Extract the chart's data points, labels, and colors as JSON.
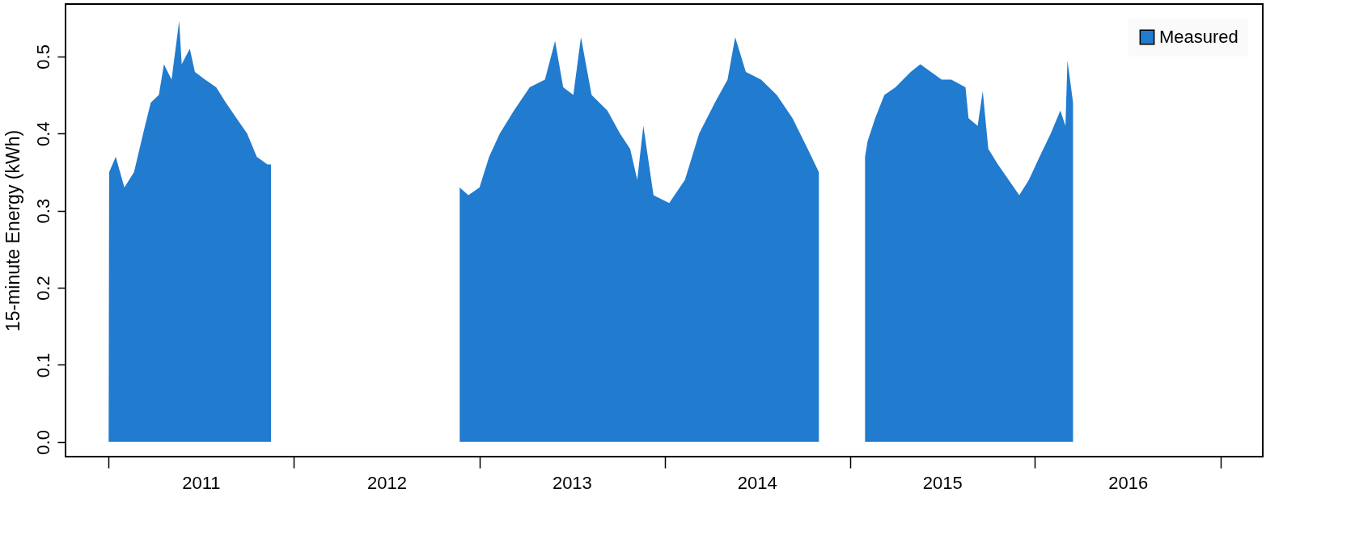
{
  "chart_data": {
    "type": "area",
    "ylabel": "15-minute Energy (kWh)",
    "xlim": [
      "2010-10-08",
      "2017-03-25"
    ],
    "xticks": [
      {
        "value": "2011-01-01",
        "label": null
      },
      {
        "value": "2012-01-01",
        "label": null
      },
      {
        "value": "2013-01-01",
        "label": null
      },
      {
        "value": "2014-01-01",
        "label": null
      },
      {
        "value": "2015-01-01",
        "label": null
      },
      {
        "value": "2016-01-01",
        "label": null
      },
      {
        "value": "2017-01-01",
        "label": null
      },
      {
        "value": "2011-07-02",
        "label": "2011"
      },
      {
        "value": "2012-07-02",
        "label": "2012"
      },
      {
        "value": "2013-07-02",
        "label": "2013"
      },
      {
        "value": "2014-07-02",
        "label": "2014"
      },
      {
        "value": "2015-07-02",
        "label": "2015"
      },
      {
        "value": "2016-07-02",
        "label": "2016"
      }
    ],
    "ylim": [
      -0.019,
      0.568
    ],
    "yticks": [
      {
        "value": 0,
        "label": "0.0"
      },
      {
        "value": 0.1,
        "label": "0.1"
      },
      {
        "value": 0.2,
        "label": "0.2"
      },
      {
        "value": 0.3,
        "label": "0.3"
      },
      {
        "value": 0.4,
        "label": "0.4"
      },
      {
        "value": 0.5,
        "label": "0.5"
      }
    ],
    "grid": false,
    "legend": "top right",
    "x": [
      "2011-01-01",
      "2011-01-02",
      "2011-01-15",
      "2011-02-01",
      "2011-02-20",
      "2011-03-10",
      "2011-03-25",
      "2011-04-10",
      "2011-04-20",
      "2011-05-05",
      "2011-05-20",
      "2011-05-25",
      "2011-06-10",
      "2011-06-20",
      "2011-07-10",
      "2011-08-01",
      "2011-08-20",
      "2011-09-10",
      "2011-10-01",
      "2011-10-20",
      "2011-11-10",
      "2011-11-17",
      "2012-06-01",
      "2012-11-23",
      "2012-12-10",
      "2013-01-01",
      "2013-01-20",
      "2013-02-10",
      "2013-03-10",
      "2013-04-10",
      "2013-05-10",
      "2013-05-30",
      "2013-06-15",
      "2013-07-05",
      "2013-07-20",
      "2013-08-10",
      "2013-09-10",
      "2013-10-05",
      "2013-10-25",
      "2013-11-01",
      "2013-11-08",
      "2013-11-20",
      "2013-12-10",
      "2014-01-10",
      "2014-02-10",
      "2014-03-10",
      "2014-04-10",
      "2014-05-05",
      "2014-05-20",
      "2014-06-10",
      "2014-07-10",
      "2014-08-10",
      "2014-09-10",
      "2014-10-10",
      "2014-11-01",
      "2014-12-20",
      "2015-01-31",
      "2015-02-05",
      "2015-02-20",
      "2015-03-10",
      "2015-04-01",
      "2015-05-01",
      "2015-05-20",
      "2015-06-10",
      "2015-07-01",
      "2015-07-20",
      "2015-08-17",
      "2015-08-23",
      "2015-09-10",
      "2015-09-20",
      "2015-10-01",
      "2015-10-20",
      "2015-11-10",
      "2015-12-01",
      "2015-12-20",
      "2016-01-10",
      "2016-02-01",
      "2016-02-20",
      "2016-03-01",
      "2016-03-05",
      "2016-03-16"
    ],
    "series": [
      {
        "name": "Measured",
        "color": "#217bcf",
        "values": [
          0,
          0.35,
          0.37,
          0.33,
          0.35,
          0.4,
          0.44,
          0.45,
          0.49,
          0.47,
          0.546,
          0.49,
          0.51,
          0.48,
          0.47,
          0.46,
          0.44,
          0.42,
          0.4,
          0.37,
          0.36,
          0.36,
          null,
          0.33,
          0.32,
          0.33,
          0.37,
          0.4,
          0.43,
          0.46,
          0.47,
          0.52,
          0.46,
          0.45,
          0.525,
          0.45,
          0.43,
          0.4,
          0.38,
          0.36,
          0.34,
          0.41,
          0.32,
          0.31,
          0.34,
          0.4,
          0.44,
          0.47,
          0.525,
          0.48,
          0.47,
          0.45,
          0.42,
          0.38,
          0.35,
          null,
          0.37,
          0.39,
          0.42,
          0.45,
          0.46,
          0.48,
          0.49,
          0.48,
          0.47,
          0.47,
          0.46,
          0.42,
          0.41,
          0.455,
          0.38,
          0.36,
          0.34,
          0.32,
          0.34,
          0.37,
          0.4,
          0.43,
          0.41,
          0.495,
          0.44
        ]
      }
    ]
  }
}
